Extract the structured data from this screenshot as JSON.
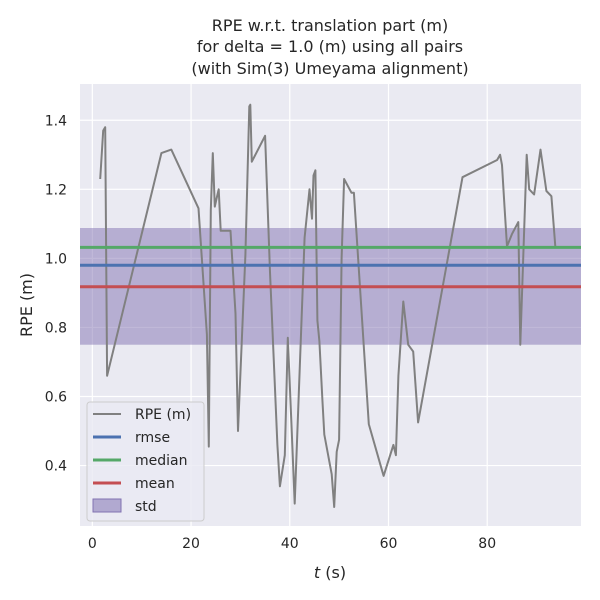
{
  "chart_data": {
    "type": "line",
    "title_lines": [
      "RPE w.r.t. translation part (m)",
      "for delta = 1.0 (m) using all pairs",
      "(with Sim(3) Umeyama alignment)"
    ],
    "xlabel_italic": "t",
    "xlabel_rest": " (s)",
    "ylabel": "RPE (m)",
    "xlim": [
      -2.5,
      99
    ],
    "ylim": [
      0.225,
      1.505
    ],
    "x_ticks": [
      0,
      20,
      40,
      60,
      80
    ],
    "y_ticks": [
      0.4,
      0.6,
      0.8,
      1.0,
      1.2,
      1.4
    ],
    "y_tick_labels": [
      "0.4",
      "0.6",
      "0.8",
      "1.0",
      "1.2",
      "1.4"
    ],
    "grid": true,
    "legend_position": "lower-left",
    "series": [
      {
        "name": "RPE (m)",
        "color": "#808080",
        "x": [
          1.6,
          2.2,
          2.6,
          3.0,
          14.0,
          16.0,
          21.5,
          23.2,
          23.6,
          24.0,
          24.4,
          24.8,
          25.2,
          25.6,
          26.0,
          28.0,
          29.0,
          29.5,
          31.0,
          31.8,
          32.0,
          32.3,
          35.0,
          36.0,
          37.5,
          38.0,
          39.0,
          39.6,
          40.3,
          41.0,
          43.0,
          44.0,
          44.5,
          44.8,
          45.2,
          45.6,
          46.0,
          46.6,
          47.0,
          48.5,
          49.0,
          49.5,
          50.0,
          50.5,
          51.0,
          52.5,
          53.0,
          56.0,
          59.0,
          61.0,
          61.5,
          62.0,
          63.0,
          64.0,
          65.0,
          66.0,
          75.0,
          82.0,
          82.6,
          83.0,
          83.5,
          84.0,
          85.0,
          86.3,
          86.7,
          88.0,
          88.5,
          89.5,
          90.8,
          92.0,
          93.0,
          93.8
        ],
        "y": [
          1.23,
          1.37,
          1.38,
          0.66,
          1.305,
          1.315,
          1.145,
          0.78,
          0.455,
          1.14,
          1.305,
          1.15,
          1.175,
          1.2,
          1.08,
          1.08,
          0.84,
          0.5,
          1.01,
          1.44,
          1.445,
          1.28,
          1.355,
          0.96,
          0.46,
          0.34,
          0.43,
          0.77,
          0.53,
          0.29,
          1.06,
          1.2,
          1.115,
          1.24,
          1.255,
          0.82,
          0.76,
          0.59,
          0.49,
          0.375,
          0.28,
          0.44,
          0.475,
          1.0,
          1.23,
          1.19,
          1.19,
          0.52,
          0.37,
          0.46,
          0.43,
          0.66,
          0.875,
          0.75,
          0.73,
          0.525,
          1.235,
          1.285,
          1.3,
          1.27,
          1.15,
          1.035,
          1.07,
          1.105,
          0.75,
          1.3,
          1.2,
          1.185,
          1.315,
          1.195,
          1.18,
          1.035
        ]
      },
      {
        "name": "rmse",
        "color": "#4c72b0",
        "value": 0.98
      },
      {
        "name": "median",
        "color": "#55a868",
        "value": 1.032
      },
      {
        "name": "mean",
        "color": "#c44e52",
        "value": 0.918
      },
      {
        "name": "std",
        "color": "#8172b2",
        "band": [
          0.75,
          1.088
        ]
      }
    ]
  }
}
